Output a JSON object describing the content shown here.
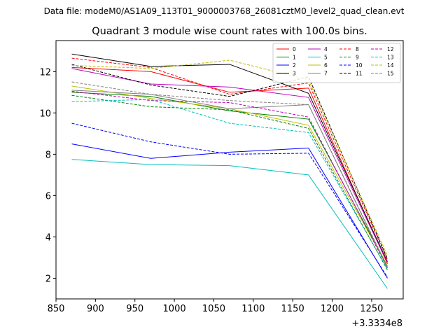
{
  "chart_data": {
    "type": "line",
    "suptitle": "Data file: modeM0/AS1A09_113T01_9000003768_26081cztM0_level2_quad_clean.evt",
    "title": "Quadrant 3 module wise count rates with 100.0s bins.",
    "xlabel": "",
    "ylabel": "",
    "x_offset_label": "+3.3334e8",
    "x": [
      870,
      970,
      1070,
      1170,
      1270
    ],
    "xlim": [
      850,
      1290
    ],
    "ylim": [
      1.0,
      13.5
    ],
    "xticks": [
      850,
      900,
      950,
      1000,
      1050,
      1100,
      1150,
      1200,
      1250
    ],
    "yticks": [
      2,
      4,
      6,
      8,
      10,
      12
    ],
    "series": [
      {
        "name": "0",
        "color": "#ff0000",
        "dash": false,
        "values": [
          12.2,
          12.0,
          11.0,
          11.2,
          2.7
        ]
      },
      {
        "name": "1",
        "color": "#008000",
        "dash": false,
        "values": [
          11.0,
          10.8,
          10.1,
          9.7,
          2.6
        ]
      },
      {
        "name": "2",
        "color": "#0000ff",
        "dash": false,
        "values": [
          8.5,
          7.8,
          8.1,
          8.3,
          2.0
        ]
      },
      {
        "name": "3",
        "color": "#000000",
        "dash": false,
        "values": [
          12.85,
          12.25,
          12.35,
          10.95,
          2.8
        ]
      },
      {
        "name": "4",
        "color": "#bf00bf",
        "dash": false,
        "values": [
          12.15,
          11.4,
          11.25,
          10.75,
          2.75
        ]
      },
      {
        "name": "5",
        "color": "#00bfbf",
        "dash": false,
        "values": [
          7.75,
          7.5,
          7.45,
          7.0,
          1.5
        ]
      },
      {
        "name": "6",
        "color": "#bfbf00",
        "dash": false,
        "values": [
          11.3,
          10.7,
          10.2,
          9.4,
          2.6
        ]
      },
      {
        "name": "7",
        "color": "#808080",
        "dash": false,
        "values": [
          11.1,
          10.9,
          10.2,
          10.4,
          2.5
        ]
      },
      {
        "name": "8",
        "color": "#ff0000",
        "dash": true,
        "values": [
          12.65,
          12.2,
          10.9,
          11.45,
          2.9
        ]
      },
      {
        "name": "9",
        "color": "#008000",
        "dash": true,
        "values": [
          10.85,
          10.3,
          10.15,
          9.25,
          2.4
        ]
      },
      {
        "name": "10",
        "color": "#0000ff",
        "dash": true,
        "values": [
          9.5,
          8.6,
          8.0,
          8.05,
          2.05
        ]
      },
      {
        "name": "11",
        "color": "#000000",
        "dash": true,
        "values": [
          12.35,
          11.35,
          10.8,
          11.75,
          2.95
        ]
      },
      {
        "name": "12",
        "color": "#bf00bf",
        "dash": true,
        "values": [
          11.05,
          10.6,
          10.5,
          9.8,
          2.5
        ]
      },
      {
        "name": "13",
        "color": "#00bfbf",
        "dash": true,
        "values": [
          10.55,
          10.65,
          9.5,
          9.05,
          2.45
        ]
      },
      {
        "name": "14",
        "color": "#bfbf00",
        "dash": true,
        "values": [
          12.3,
          12.15,
          12.55,
          11.6,
          3.1
        ]
      },
      {
        "name": "15",
        "color": "#808080",
        "dash": true,
        "values": [
          11.5,
          10.9,
          10.6,
          10.4,
          2.55
        ]
      }
    ]
  }
}
